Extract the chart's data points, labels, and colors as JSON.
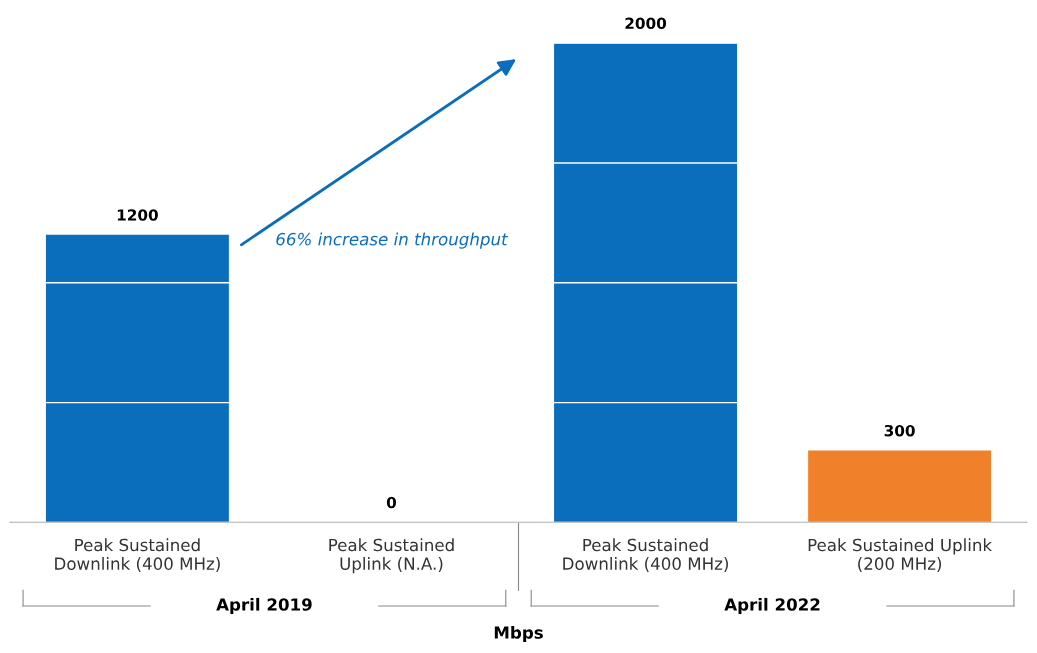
{
  "chart_data": {
    "type": "bar",
    "xlabel": "Mbps",
    "categories": [
      "Peak Sustained\nDownlink (400 MHz)",
      "Peak Sustained\nUplink (N.A.)",
      "Peak Sustained\nDownlink (400 MHz)",
      "Peak Sustained Uplink\n(200 MHz)"
    ],
    "values": [
      1200,
      0,
      2000,
      300
    ],
    "colors": [
      "#0a6ebd",
      "#0a6ebd",
      "#0a6ebd",
      "#f0812a"
    ],
    "yticks": [
      {
        "value": 0,
        "label": null
      },
      {
        "value": 500,
        "label": null
      },
      {
        "value": 1000,
        "label": null
      },
      {
        "value": 1500,
        "label": null
      },
      {
        "value": 2000,
        "label": null
      }
    ],
    "grid": "y",
    "tick_labels": "x",
    "data_labels": true,
    "annotations": [
      "April 2019",
      "April 2022",
      "66% increase in throughput"
    ]
  }
}
